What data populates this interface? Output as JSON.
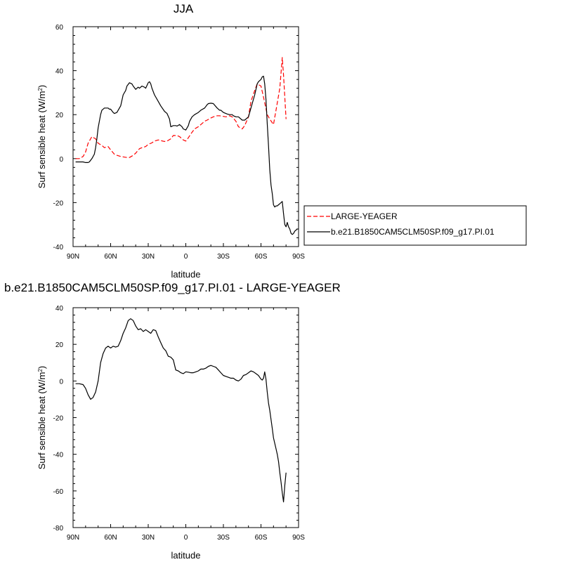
{
  "chart_data": [
    {
      "type": "line",
      "title": "JJA",
      "xlabel": "latitude",
      "ylabel": "Surf sensible heat (W/m²)",
      "ylabel_main": "Surf sensible heat (W/m",
      "ylabel_sup": "2",
      "ylabel_close": ")",
      "xlim": [
        90,
        -90
      ],
      "ylim": [
        -40,
        60
      ],
      "xticks": [
        90,
        60,
        30,
        0,
        -30,
        -60,
        -90
      ],
      "xtick_labels": [
        "90N",
        "60N",
        "30N",
        "0",
        "30S",
        "60S",
        "90S"
      ],
      "yticks": [
        -40,
        -20,
        0,
        20,
        40,
        60
      ],
      "ytick_labels": [
        "-40",
        "-20",
        "0",
        "20",
        "40",
        "60"
      ],
      "legend_position": "right, outside plot",
      "series": [
        {
          "name": "LARGE-YEAGER",
          "color": "#ff0000",
          "dash": true,
          "x": [
            88,
            85,
            82,
            80,
            78,
            75,
            72,
            70,
            67,
            65,
            62,
            60,
            57,
            55,
            52,
            50,
            47,
            45,
            42,
            40,
            37,
            35,
            32,
            30,
            27,
            25,
            22,
            20,
            17,
            15,
            12,
            10,
            7,
            5,
            2,
            0,
            -2,
            -5,
            -7,
            -10,
            -12,
            -15,
            -17,
            -20,
            -22,
            -25,
            -27,
            -30,
            -32,
            -35,
            -37,
            -40,
            -42,
            -45,
            -47,
            -50,
            -52,
            -55,
            -57,
            -60,
            -62,
            -65,
            -67,
            -70,
            -72,
            -75,
            -77,
            -78,
            -80
          ],
          "y": [
            0,
            0,
            1,
            3,
            7,
            10,
            9,
            7,
            6,
            5,
            5.5,
            4,
            2,
            1.5,
            1,
            0.8,
            0.5,
            0.5,
            1.5,
            2.5,
            4.5,
            5,
            5.5,
            6.5,
            7.2,
            8,
            8.5,
            8.2,
            7.8,
            8,
            9,
            10.5,
            10.5,
            10,
            8.5,
            8,
            9.5,
            12,
            13.5,
            14.5,
            15.5,
            17,
            17.5,
            18.5,
            19,
            19.5,
            19.5,
            19.2,
            19,
            19.5,
            19,
            17,
            14.5,
            13.5,
            15,
            19,
            26,
            31,
            34,
            33,
            28,
            20,
            18,
            15.5,
            22,
            32,
            46,
            38,
            18
          ]
        },
        {
          "name": "b.e21.B1850CAM5CLM50SP.f09_g17.PI.01",
          "color": "#000000",
          "dash": false,
          "x": [
            88,
            85,
            82,
            80,
            78,
            77,
            75,
            73,
            72,
            71,
            70,
            68,
            67,
            65,
            63,
            62,
            61,
            60,
            58,
            57,
            55,
            52,
            50,
            48,
            47,
            45,
            43,
            42,
            40,
            38,
            37,
            35,
            33,
            32,
            30,
            29,
            28,
            27,
            25,
            22,
            20,
            17,
            15,
            13,
            12,
            10,
            8,
            7,
            5,
            3,
            2,
            0,
            -2,
            -3,
            -5,
            -7,
            -10,
            -12,
            -15,
            -17,
            -18,
            -20,
            -22,
            -25,
            -27,
            -28,
            -30,
            -32,
            -33,
            -35,
            -37,
            -38,
            -40,
            -42,
            -45,
            -47,
            -50,
            -52,
            -55,
            -57,
            -58,
            -60,
            -61,
            -62,
            -63,
            -64,
            -65,
            -66,
            -67,
            -68,
            -69,
            -70,
            -71,
            -72,
            -73,
            -74,
            -75,
            -76,
            -77,
            -78,
            -79,
            -80,
            -81,
            -82,
            -83,
            -84,
            -85,
            -86,
            -87,
            -88,
            -89
          ],
          "y": [
            -1.5,
            -1.5,
            -1.5,
            -1.8,
            -1.8,
            -1.5,
            0,
            2,
            5,
            9,
            14,
            20,
            22,
            23,
            23,
            23,
            22.5,
            22.5,
            21,
            20.5,
            21,
            24,
            29,
            31,
            33,
            34.5,
            34,
            33,
            31.5,
            32.5,
            32,
            33,
            32.5,
            32,
            34.5,
            35,
            34,
            32,
            29,
            26,
            24,
            21.5,
            20.5,
            18,
            14.5,
            15,
            15,
            14.8,
            15.5,
            14.5,
            13.5,
            13,
            15,
            17,
            19,
            20,
            21,
            22,
            23,
            24.5,
            25,
            25.2,
            25,
            23,
            22,
            22,
            21,
            20.5,
            20.3,
            20,
            20,
            19.5,
            19,
            19,
            17.5,
            17.5,
            19,
            23,
            29,
            34,
            35,
            36,
            37.2,
            37.5,
            34,
            27,
            16,
            6,
            -5,
            -12,
            -16,
            -21,
            -22,
            -21.5,
            -21.5,
            -21,
            -20.5,
            -20,
            -19.5,
            -25,
            -30,
            -31,
            -29,
            -31,
            -32,
            -34,
            -34.5,
            -34,
            -33,
            -32.5,
            -32
          ]
        }
      ]
    },
    {
      "type": "line",
      "title": "b.e21.B1850CAM5CLM50SP.f09_g17.PI.01 - LARGE-YEAGER",
      "xlabel": "latitude",
      "ylabel": "Surf sensible heat (W/m²)",
      "ylabel_main": "Surf sensible heat (W/m",
      "ylabel_sup": "2",
      "ylabel_close": ")",
      "xlim": [
        90,
        -90
      ],
      "ylim": [
        -80,
        40
      ],
      "xticks": [
        90,
        60,
        30,
        0,
        -30,
        -60,
        -90
      ],
      "xtick_labels": [
        "90N",
        "60N",
        "30N",
        "0",
        "30S",
        "60S",
        "90S"
      ],
      "yticks": [
        -80,
        -60,
        -40,
        -20,
        0,
        20,
        40
      ],
      "ytick_labels": [
        "-80",
        "-60",
        "-40",
        "-20",
        "0",
        "20",
        "40"
      ],
      "series": [
        {
          "color": "#000000",
          "dash": false,
          "x": [
            88,
            85,
            82,
            80,
            78,
            76,
            74,
            72,
            70,
            68,
            66,
            64,
            62,
            60,
            58,
            56,
            54,
            52,
            50,
            48,
            46,
            44,
            42,
            40,
            38,
            36,
            34,
            32,
            30,
            28,
            26,
            24,
            22,
            20,
            18,
            16,
            14,
            12,
            10,
            8,
            6,
            4,
            2,
            0,
            -2,
            -4,
            -6,
            -8,
            -10,
            -12,
            -14,
            -16,
            -18,
            -20,
            -22,
            -24,
            -26,
            -28,
            -30,
            -32,
            -34,
            -36,
            -38,
            -40,
            -42,
            -44,
            -46,
            -48,
            -50,
            -52,
            -54,
            -56,
            -58,
            -60,
            -61,
            -62,
            -63,
            -64,
            -65,
            -66,
            -67,
            -68,
            -69,
            -70,
            -71,
            -72,
            -73,
            -74,
            -75,
            -76,
            -77,
            -78,
            -79,
            -80
          ],
          "y": [
            -1.5,
            -1.5,
            -2,
            -4,
            -7.5,
            -10,
            -9,
            -6,
            0,
            10,
            15,
            18,
            19,
            18,
            19,
            18.5,
            19,
            22,
            26,
            29,
            33,
            34,
            33,
            30,
            28,
            28.5,
            27,
            28,
            27,
            26,
            28,
            27.5,
            24,
            21,
            18,
            16.5,
            13.5,
            13,
            11.5,
            6,
            5.5,
            4.5,
            4,
            5,
            4.8,
            4.5,
            4.5,
            5,
            5.5,
            6.5,
            6.5,
            7,
            8,
            8.5,
            8,
            7.5,
            6,
            4.5,
            3,
            2.5,
            2,
            1.5,
            1.5,
            0.5,
            0,
            1,
            3,
            3.5,
            4.5,
            5.5,
            5,
            4,
            3,
            1,
            0.5,
            1.5,
            5,
            1,
            -6,
            -12,
            -16,
            -21,
            -26,
            -31,
            -34,
            -37,
            -40,
            -44,
            -50,
            -55,
            -61,
            -66,
            -57,
            -50
          ]
        }
      ]
    }
  ]
}
